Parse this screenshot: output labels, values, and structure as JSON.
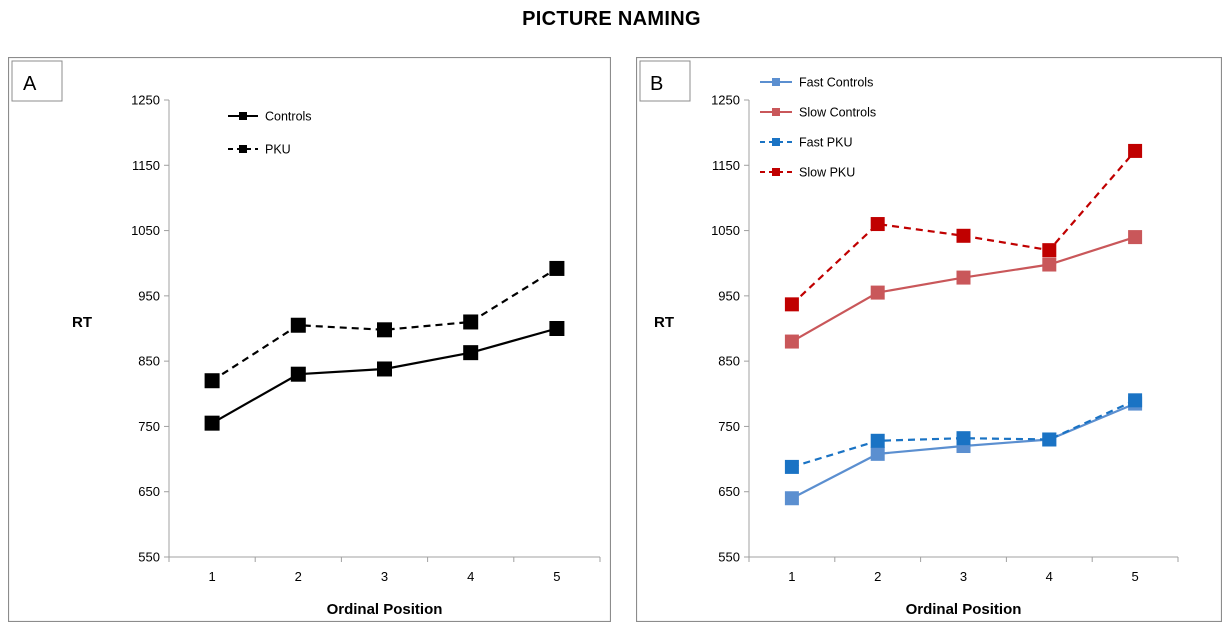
{
  "title": "PICTURE NAMING",
  "chart_data": [
    {
      "panel_label": "A",
      "type": "line",
      "ylabel": "RT",
      "xlabel": "Ordinal Position",
      "x": [
        1,
        2,
        3,
        4,
        5
      ],
      "ylim": [
        550,
        1250
      ],
      "yticks": [
        550,
        650,
        750,
        850,
        950,
        1050,
        1150,
        1250
      ],
      "legend_position": "top-left",
      "grid": false,
      "series": [
        {
          "name": "Controls",
          "values": [
            755,
            830,
            838,
            863,
            900
          ],
          "color": "#000000",
          "dashed": false
        },
        {
          "name": "PKU",
          "values": [
            820,
            905,
            898,
            910,
            992
          ],
          "color": "#000000",
          "dashed": true
        }
      ]
    },
    {
      "panel_label": "B",
      "type": "line",
      "ylabel": "RT",
      "xlabel": "Ordinal Position",
      "x": [
        1,
        2,
        3,
        4,
        5
      ],
      "ylim": [
        550,
        1250
      ],
      "yticks": [
        550,
        650,
        750,
        850,
        950,
        1050,
        1150,
        1250
      ],
      "legend_position": "top-left",
      "grid": false,
      "series": [
        {
          "name": "Fast Controls",
          "values": [
            640,
            708,
            720,
            730,
            785
          ],
          "color": "#5b8fd0",
          "dashed": false
        },
        {
          "name": "Slow Controls",
          "values": [
            880,
            955,
            978,
            998,
            1040
          ],
          "color": "#c9575a",
          "dashed": false
        },
        {
          "name": "Fast PKU",
          "values": [
            688,
            728,
            732,
            730,
            790
          ],
          "color": "#1a73c4",
          "dashed": true
        },
        {
          "name": "Slow PKU",
          "values": [
            937,
            1060,
            1042,
            1020,
            1172
          ],
          "color": "#c00000",
          "dashed": true
        }
      ]
    }
  ]
}
